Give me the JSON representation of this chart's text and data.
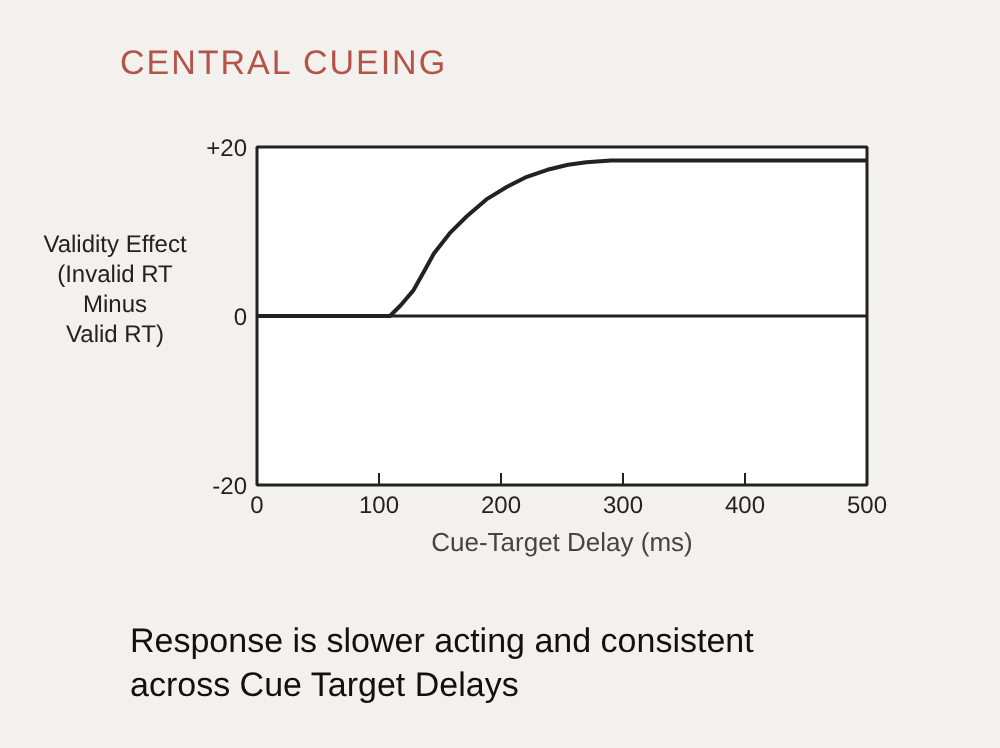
{
  "chart_data": {
    "type": "line",
    "title": "CENTRAL CUEING",
    "xlabel": "Cue-Target Delay (ms)",
    "ylabel": "Validity Effect\n(Invalid RT\nMinus\nValid RT)",
    "x": [
      0,
      100,
      109,
      118,
      128,
      137,
      145,
      158,
      172,
      188,
      205,
      220,
      238,
      255,
      270,
      290,
      320,
      400,
      500
    ],
    "series": [
      {
        "color": "#222222",
        "values": [
          0,
          0,
          0,
          1.3,
          3,
          5.3,
          7.4,
          9.8,
          11.8,
          13.8,
          15.3,
          16.4,
          17.3,
          17.9,
          18.2,
          18.4,
          18.4,
          18.4,
          18.4
        ]
      }
    ],
    "xlim": [
      0,
      500
    ],
    "xticks": [
      0,
      100,
      200,
      300,
      400,
      500
    ],
    "ylim": [
      -20,
      20
    ],
    "yticks": [
      -20,
      0,
      {
        "value": 20,
        "label": "+20"
      }
    ],
    "ref_lines": [
      {
        "axis": "y",
        "value": 0,
        "color": "#222222"
      }
    ],
    "grid": false,
    "marker": "none",
    "line_style": "solid",
    "annotations": [
      "Response is slower acting and consistent\nacross Cue Target Delays"
    ]
  }
}
